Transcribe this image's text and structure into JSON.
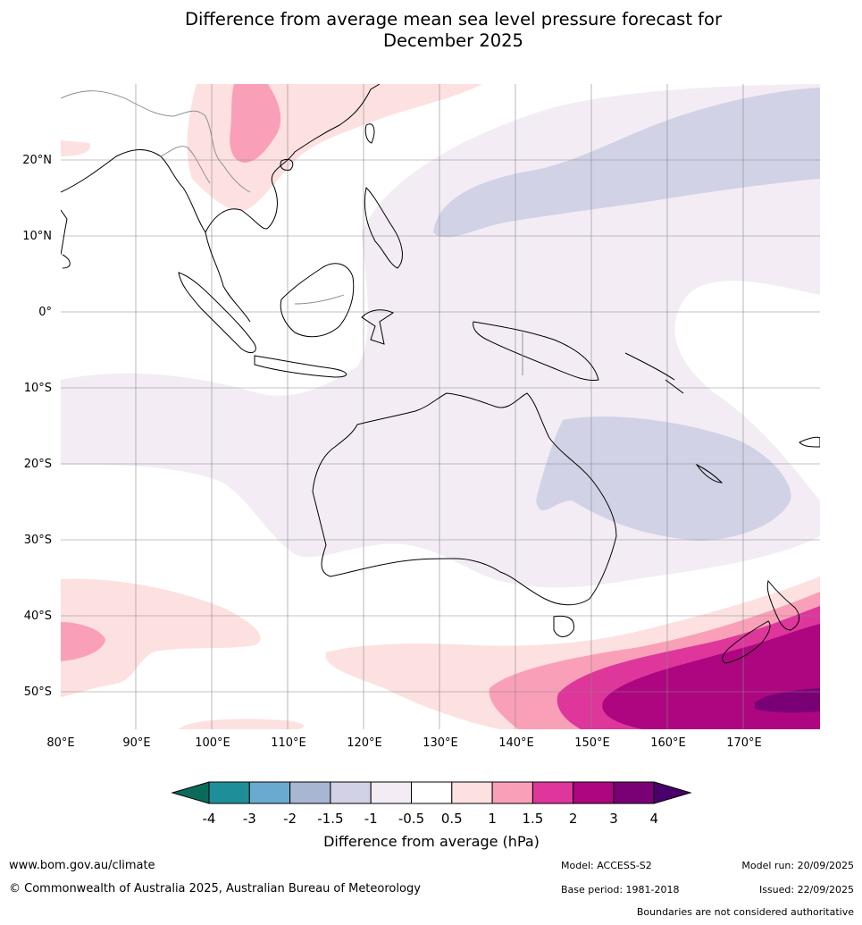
{
  "title_line1": "Difference from average mean sea level pressure forecast for",
  "title_line2": "December 2025",
  "map": {
    "lon_ticks": [
      "80°E",
      "90°E",
      "100°E",
      "110°E",
      "120°E",
      "130°E",
      "140°E",
      "150°E",
      "160°E",
      "170°E"
    ],
    "lat_ticks": [
      "20°N",
      "10°N",
      "0°",
      "10°S",
      "20°S",
      "30°S",
      "40°S",
      "50°S"
    ],
    "lon_range": [
      80,
      180
    ],
    "lat_range": [
      -55,
      30
    ]
  },
  "colorbar": {
    "title": "Difference from average (hPa)",
    "labels": [
      "-4",
      "-3",
      "-2",
      "-1.5",
      "-1",
      "-0.5",
      "0.5",
      "1",
      "1.5",
      "2",
      "3",
      "4"
    ],
    "colors": {
      "below_-4": "#0b6b5b",
      "-4_-3": "#1e8f99",
      "-3_-2": "#6aaad0",
      "-2_-1.5": "#a8b6d2",
      "-1.5_-1": "#d1d2e5",
      "-1_-0.5": "#f3ecf5",
      "-0.5_0.5": "#ffffff",
      "0.5_1": "#fde0e0",
      "1_1.5": "#f9a0b8",
      "1.5_2": "#de369b",
      "2_3": "#ad0680",
      "3_4": "#790175",
      "above_4": "#4a006a"
    }
  },
  "footer": {
    "website": "www.bom.gov.au/climate",
    "copyright": "© Commonwealth of Australia 2025, Australian Bureau of Meteorology",
    "model": "Model: ACCESS-S2",
    "base_period": "Base period: 1981-2018",
    "model_run": "Model run: 20/09/2025",
    "issued": "Issued: 22/09/2025",
    "disclaimer": "Boundaries are not considered authoritative"
  }
}
